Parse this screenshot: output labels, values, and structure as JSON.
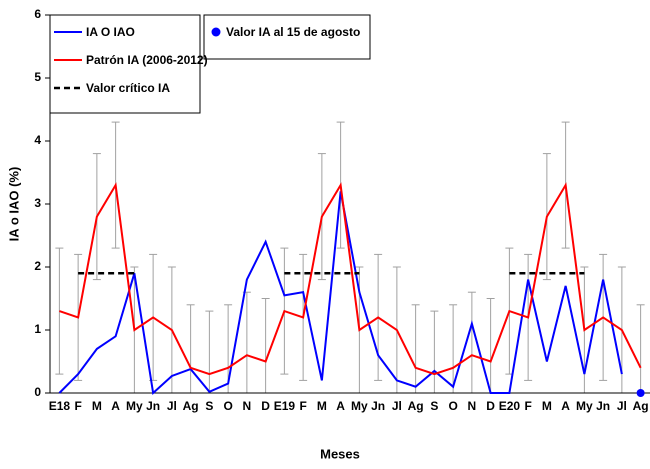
{
  "chart_data": {
    "type": "line",
    "x_label": "Meses",
    "y_label": "IA o IAO (%)",
    "categories": [
      "E18",
      "F",
      "M",
      "A",
      "My",
      "Jn",
      "Jl",
      "Ag",
      "S",
      "O",
      "N",
      "D",
      "E19",
      "F",
      "M",
      "A",
      "My",
      "Jn",
      "Jl",
      "Ag",
      "S",
      "O",
      "N",
      "D",
      "E20",
      "F",
      "M",
      "A",
      "My",
      "Jn",
      "Jl",
      "Ag"
    ],
    "ylim": [
      0,
      6
    ],
    "yticks": [
      0,
      1,
      2,
      3,
      4,
      5,
      6
    ],
    "series": [
      {
        "name": "IA O IAO",
        "color": "#0000ff",
        "values": [
          0,
          0.3,
          0.7,
          0.9,
          1.9,
          0,
          0.27,
          0.38,
          0.02,
          0.15,
          1.8,
          2.4,
          1.55,
          1.6,
          0.2,
          3.2,
          1.6,
          0.6,
          0.2,
          0.1,
          0.35,
          0.1,
          1.1,
          0,
          0,
          1.8,
          0.5,
          1.7,
          0.3,
          1.8,
          0.3,
          null
        ]
      },
      {
        "name": "Patrón IA (2006-2012)",
        "color": "#ff0000",
        "values": [
          1.3,
          1.2,
          2.8,
          3.3,
          1.0,
          1.2,
          1.0,
          0.4,
          0.3,
          0.4,
          0.6,
          0.5,
          1.3,
          1.2,
          2.8,
          3.3,
          1.0,
          1.2,
          1.0,
          0.4,
          0.3,
          0.4,
          0.6,
          0.5,
          1.3,
          1.2,
          2.8,
          3.3,
          1.0,
          1.2,
          1.0,
          0.4
        ],
        "errors": [
          1,
          1,
          1,
          1,
          1,
          1,
          1,
          1,
          1,
          1,
          1,
          1,
          1,
          1,
          1,
          1,
          1,
          1,
          1,
          1,
          1,
          1,
          1,
          1,
          1,
          1,
          1,
          1,
          1,
          1,
          1,
          1
        ],
        "error_color": "#a0a0a0"
      },
      {
        "name": "Valor crítico IA",
        "color": "#000000",
        "dash": true,
        "values": [
          null,
          1.9,
          1.9,
          1.9,
          1.9,
          null,
          null,
          null,
          null,
          null,
          null,
          null,
          1.9,
          1.9,
          1.9,
          1.9,
          1.9,
          null,
          null,
          null,
          null,
          null,
          null,
          null,
          1.9,
          1.9,
          1.9,
          1.9,
          1.9,
          null,
          null,
          null
        ]
      },
      {
        "name": "Valor IA al 15 de agosto",
        "color": "#0000ff",
        "marker": "dot",
        "values": [
          null,
          null,
          null,
          null,
          null,
          null,
          null,
          null,
          null,
          null,
          null,
          null,
          null,
          null,
          null,
          null,
          null,
          null,
          null,
          null,
          null,
          null,
          null,
          null,
          null,
          null,
          null,
          null,
          null,
          null,
          null,
          0
        ]
      }
    ]
  }
}
